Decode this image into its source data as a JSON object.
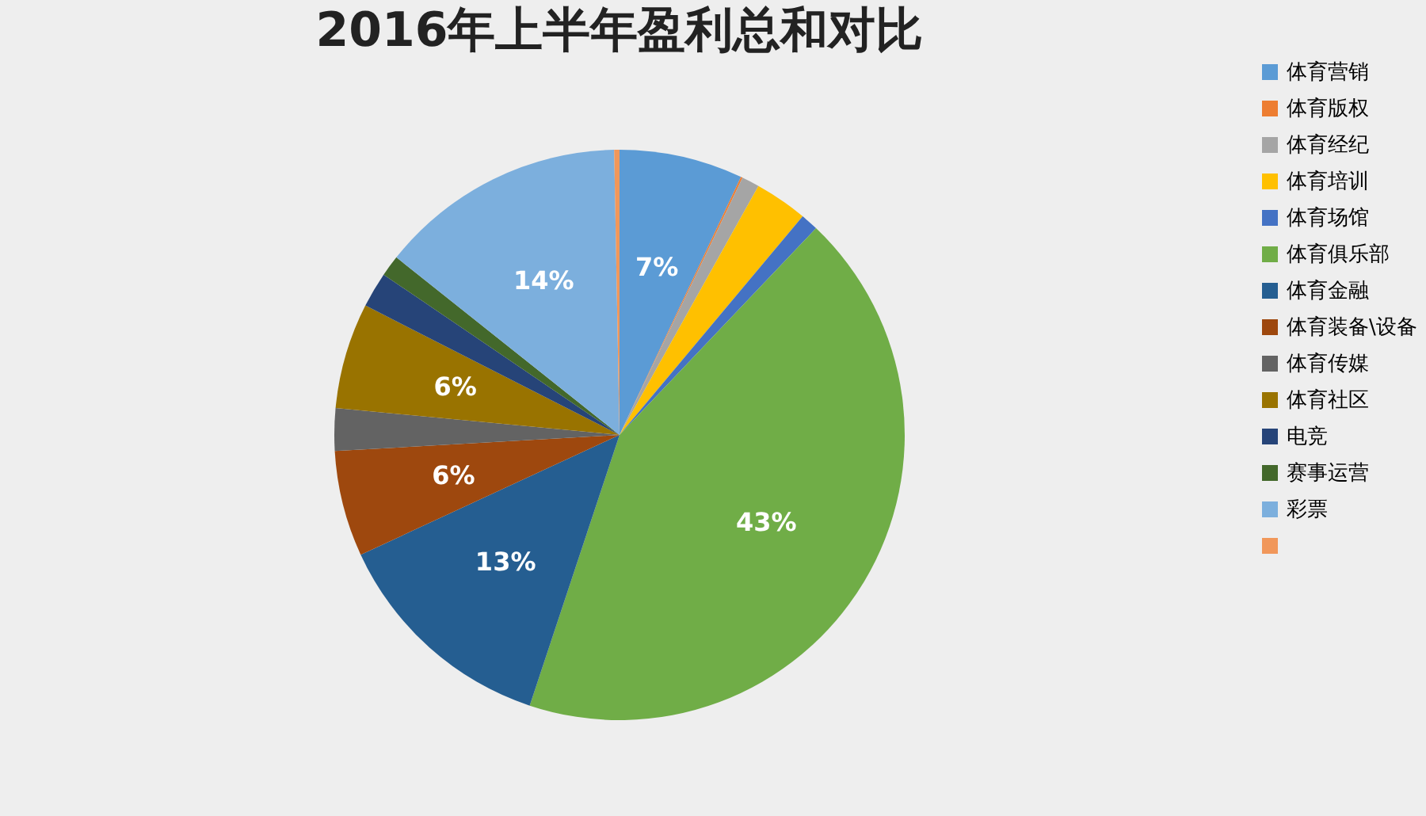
{
  "chart_data": {
    "type": "pie",
    "title": "2016年上半年盈利总和对比",
    "categories": [
      "体育营销",
      "体育版权",
      "体育经纪",
      "体育培训",
      "体育场馆",
      "体育俱乐部",
      "体育金融",
      "体育装备\\设备",
      "体育传媒",
      "体育社区",
      "电竞",
      "赛事运营",
      "彩票",
      null
    ],
    "values": [
      7,
      0.1,
      1,
      3,
      1,
      43,
      13,
      6,
      2.4,
      6,
      2,
      1.2,
      14,
      0.3
    ],
    "colors": [
      "#5b9bd5",
      "#ed7d31",
      "#a5a5a5",
      "#ffc000",
      "#4472c4",
      "#70ad47",
      "#255e91",
      "#9e480e",
      "#636363",
      "#997300",
      "#264478",
      "#43682b",
      "#7cafdd",
      "#f1975a"
    ],
    "value_labels": [
      "7%",
      null,
      null,
      null,
      null,
      "43%",
      "13%",
      "6%",
      null,
      "6%",
      null,
      null,
      "14%",
      null
    ],
    "legend": "right"
  }
}
